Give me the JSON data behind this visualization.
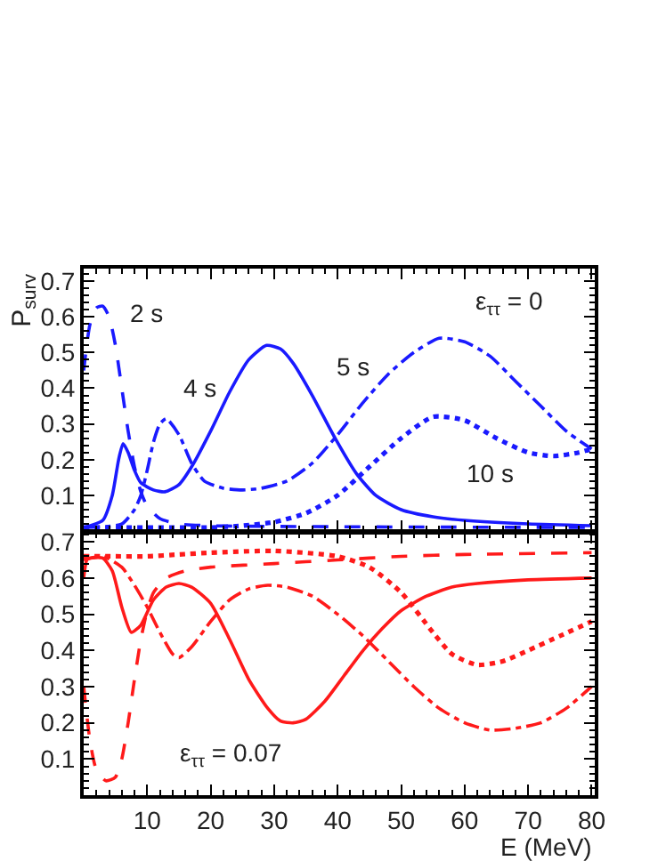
{
  "chart_data": [
    {
      "type": "line",
      "ylabel": "P$_{surv}$",
      "xlim": [
        0,
        80.5
      ],
      "xticks": [
        10,
        20,
        30,
        40,
        50,
        60,
        70,
        80
      ],
      "ylim": [
        0,
        0.735
      ],
      "yticks": [
        0.1,
        0.2,
        0.3,
        0.4,
        0.5,
        0.6,
        0.7
      ],
      "tick_labels": "y",
      "annotations": [
        "2 s",
        "4 s",
        "5 s",
        "10 s",
        "ε$_{ττ}$ = 0"
      ],
      "series": [
        {
          "color": "#1a1aff",
          "line_style": "dashed",
          "x": [
            0,
            1,
            2,
            3,
            4,
            5,
            6,
            7,
            8,
            9,
            10,
            12,
            15,
            20,
            80
          ],
          "values": [
            0.45,
            0.58,
            0.625,
            0.63,
            0.6,
            0.52,
            0.4,
            0.28,
            0.18,
            0.11,
            0.07,
            0.035,
            0.02,
            0.015,
            0.01
          ]
        },
        {
          "color": "#1a1aff",
          "line_style": "solid",
          "x": [
            0,
            3,
            4.5,
            5.5,
            6.2,
            7,
            8,
            9,
            11,
            12.8,
            15,
            17,
            20,
            23,
            26,
            28.8,
            31,
            33,
            36,
            39.6,
            43,
            46,
            50,
            55,
            60,
            70,
            80
          ],
          "values": [
            0.01,
            0.03,
            0.1,
            0.2,
            0.245,
            0.22,
            0.17,
            0.135,
            0.115,
            0.11,
            0.13,
            0.18,
            0.28,
            0.39,
            0.48,
            0.52,
            0.51,
            0.47,
            0.38,
            0.26,
            0.16,
            0.1,
            0.06,
            0.04,
            0.03,
            0.02,
            0.015
          ]
        },
        {
          "color": "#1a1aff",
          "line_style": "dashdot",
          "x": [
            0,
            6,
            8,
            9,
            10,
            11,
            12,
            13,
            15,
            17,
            19,
            22,
            25,
            28,
            32,
            36,
            40,
            44,
            48,
            52,
            56,
            60,
            64,
            68,
            72,
            76,
            80
          ],
          "values": [
            0.01,
            0.02,
            0.06,
            0.1,
            0.17,
            0.25,
            0.3,
            0.315,
            0.27,
            0.19,
            0.14,
            0.12,
            0.115,
            0.12,
            0.14,
            0.19,
            0.27,
            0.36,
            0.44,
            0.5,
            0.54,
            0.53,
            0.49,
            0.42,
            0.35,
            0.28,
            0.23
          ]
        },
        {
          "color": "#1a1aff",
          "line_style": "dotted",
          "x": [
            0,
            10,
            20,
            25,
            30,
            35,
            40,
            45,
            50,
            55,
            60,
            65,
            70,
            74,
            78,
            80
          ],
          "values": [
            0.01,
            0.01,
            0.01,
            0.015,
            0.025,
            0.05,
            0.1,
            0.18,
            0.26,
            0.32,
            0.31,
            0.26,
            0.22,
            0.21,
            0.22,
            0.23
          ]
        }
      ]
    },
    {
      "type": "line",
      "xlabel": "E (MeV)",
      "xlim": [
        0,
        80.5
      ],
      "xticks": [
        10,
        20,
        30,
        40,
        50,
        60,
        70,
        80
      ],
      "ylim": [
        0,
        0.725
      ],
      "yticks": [
        0.1,
        0.2,
        0.3,
        0.4,
        0.5,
        0.6,
        0.7
      ],
      "annotations": [
        "ε$_{ττ}$ = 0.07"
      ],
      "series": [
        {
          "color": "#ff1a1a",
          "line_style": "solid",
          "x": [
            0,
            0.5,
            1,
            3,
            4.5,
            6,
            7.5,
            9,
            11,
            13,
            15,
            17,
            20,
            23,
            26,
            29,
            31,
            33,
            35,
            38,
            41,
            44,
            47,
            50,
            54,
            58,
            62,
            70,
            80
          ],
          "values": [
            0.6,
            0.65,
            0.655,
            0.655,
            0.62,
            0.52,
            0.45,
            0.47,
            0.54,
            0.575,
            0.585,
            0.575,
            0.53,
            0.43,
            0.32,
            0.24,
            0.205,
            0.2,
            0.21,
            0.26,
            0.33,
            0.4,
            0.46,
            0.51,
            0.55,
            0.575,
            0.585,
            0.595,
            0.6
          ]
        },
        {
          "color": "#ff1a1a",
          "line_style": "dashed",
          "x": [
            0,
            1,
            2,
            3.5,
            5,
            6,
            7,
            8,
            9,
            10,
            11,
            13,
            16,
            20,
            30,
            40,
            50,
            60,
            80
          ],
          "values": [
            0.3,
            0.15,
            0.07,
            0.04,
            0.05,
            0.1,
            0.2,
            0.32,
            0.43,
            0.51,
            0.56,
            0.6,
            0.62,
            0.63,
            0.64,
            0.65,
            0.66,
            0.665,
            0.67
          ]
        },
        {
          "color": "#ff1a1a",
          "line_style": "dashdot",
          "x": [
            0,
            3,
            6,
            8,
            10,
            12,
            14,
            15,
            17,
            20,
            23,
            26,
            29,
            32,
            36,
            40,
            44,
            48,
            52,
            56,
            60,
            64,
            68,
            72,
            76,
            80
          ],
          "values": [
            0.65,
            0.66,
            0.63,
            0.58,
            0.52,
            0.45,
            0.39,
            0.38,
            0.41,
            0.48,
            0.54,
            0.57,
            0.58,
            0.575,
            0.55,
            0.5,
            0.44,
            0.37,
            0.3,
            0.24,
            0.2,
            0.18,
            0.185,
            0.2,
            0.24,
            0.3
          ]
        },
        {
          "color": "#ff1a1a",
          "line_style": "dotted",
          "x": [
            0,
            5,
            10,
            15,
            20,
            30,
            40,
            45,
            50,
            55,
            58,
            62,
            66,
            70,
            75,
            80
          ],
          "values": [
            0.66,
            0.66,
            0.66,
            0.665,
            0.67,
            0.675,
            0.66,
            0.63,
            0.56,
            0.45,
            0.39,
            0.36,
            0.37,
            0.4,
            0.44,
            0.48
          ]
        }
      ]
    }
  ]
}
